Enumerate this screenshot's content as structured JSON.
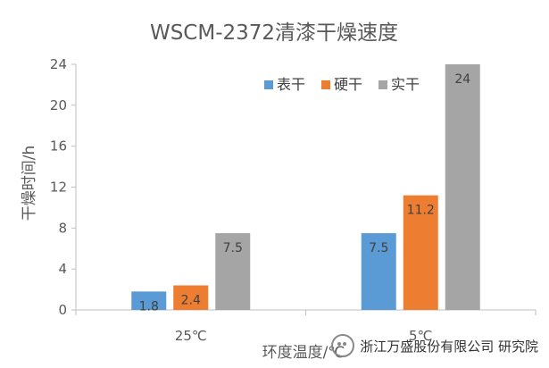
{
  "chart_data": {
    "type": "bar",
    "title": "WSCM-2372清漆干燥速度",
    "xlabel": "环度温度/℃",
    "ylabel": "干燥时间/h",
    "categories": [
      "25℃",
      "5℃"
    ],
    "series": [
      {
        "name": "表干",
        "color": "#5B9BD5",
        "values": [
          1.8,
          7.5
        ]
      },
      {
        "name": "硬干",
        "color": "#ED7D31",
        "values": [
          2.4,
          11.2
        ]
      },
      {
        "name": "实干",
        "color": "#A5A5A5",
        "values": [
          7.5,
          24
        ]
      }
    ],
    "ylim": [
      0,
      24
    ],
    "yticks": [
      0,
      4,
      8,
      12,
      16,
      20,
      24
    ],
    "grid": false,
    "legend": "top-right"
  },
  "watermark": {
    "text": "浙江万盛股份有限公司 研究院",
    "icon": "wechat-icon"
  }
}
